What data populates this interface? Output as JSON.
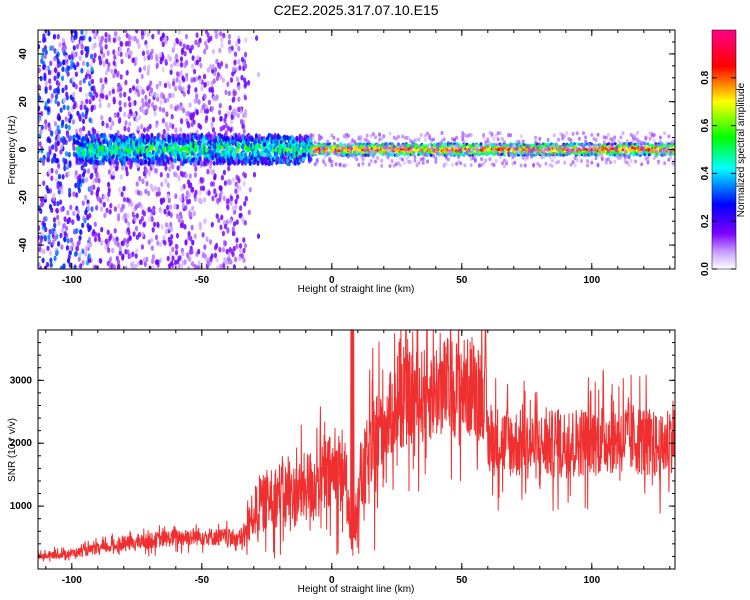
{
  "title": "C2E2.2025.317.07.10.E15",
  "chart_data": [
    {
      "type": "heatmap",
      "title": "C2E2.2025.317.07.10.E15",
      "xlabel": "Height of straight line (km)",
      "ylabel": "Frequency (Hz)",
      "xlim": [
        -113,
        132
      ],
      "ylim": [
        -50,
        50
      ],
      "x_ticks": [
        -100,
        -50,
        0,
        50,
        100
      ],
      "y_ticks": [
        -40,
        -20,
        0,
        20,
        40
      ],
      "colorbar": {
        "label": "Normalized spectral amplitude",
        "range": [
          0,
          1
        ],
        "ticks": [
          0.0,
          0.2,
          0.4,
          0.6,
          0.8
        ],
        "colors": [
          "#ffffff",
          "#7b00ff",
          "#0000ff",
          "#00ffff",
          "#00ff00",
          "#ffff00",
          "#ff0000",
          "#ff0088"
        ]
      },
      "features": [
        {
          "x_range": [
            -113,
            -92
          ],
          "description_values": {
            "freq_spread_hz": [
              -50,
              50
            ],
            "amplitude": 0.3
          }
        },
        {
          "x_range": [
            -92,
            -33
          ],
          "description_values": {
            "freq_spread_hz": [
              -50,
              50
            ],
            "amplitude": 0.1
          }
        },
        {
          "x_range": [
            -97,
            -10
          ],
          "description_values": {
            "freq_center_hz": 0,
            "amplitude": 0.55
          }
        },
        {
          "x_range": [
            -10,
            132
          ],
          "description_values": {
            "freq_center_hz": 0,
            "amplitude": 0.9
          }
        }
      ]
    },
    {
      "type": "line",
      "xlabel": "Height of straight line (km)",
      "ylabel": "SNR (10 * v/v)",
      "xlim": [
        -113,
        132
      ],
      "ylim": [
        0,
        3800
      ],
      "x_ticks": [
        -100,
        -50,
        0,
        50,
        100
      ],
      "y_ticks": [
        1000,
        2000,
        3000
      ],
      "color": "#f03030",
      "series": [
        {
          "x": [
            -113,
            -100,
            -90,
            -80,
            -70,
            -60,
            -50,
            -40,
            -34,
            -30,
            -25,
            -20,
            -15,
            -10,
            -5,
            0,
            5,
            8,
            10,
            15,
            20,
            25,
            30,
            35,
            40,
            45,
            50,
            55,
            59,
            60,
            61,
            70,
            80,
            90,
            100,
            110,
            120,
            127,
            130,
            132
          ],
          "y": [
            200,
            250,
            320,
            400,
            450,
            500,
            520,
            500,
            480,
            900,
            1100,
            1200,
            1150,
            1300,
            1400,
            1500,
            1600,
            200,
            1300,
            1800,
            2300,
            2600,
            2700,
            2750,
            2850,
            2900,
            2900,
            2850,
            2850,
            2000,
            2050,
            2000,
            1950,
            2000,
            2050,
            2100,
            2050,
            1900,
            2100,
            2200
          ]
        }
      ]
    }
  ]
}
